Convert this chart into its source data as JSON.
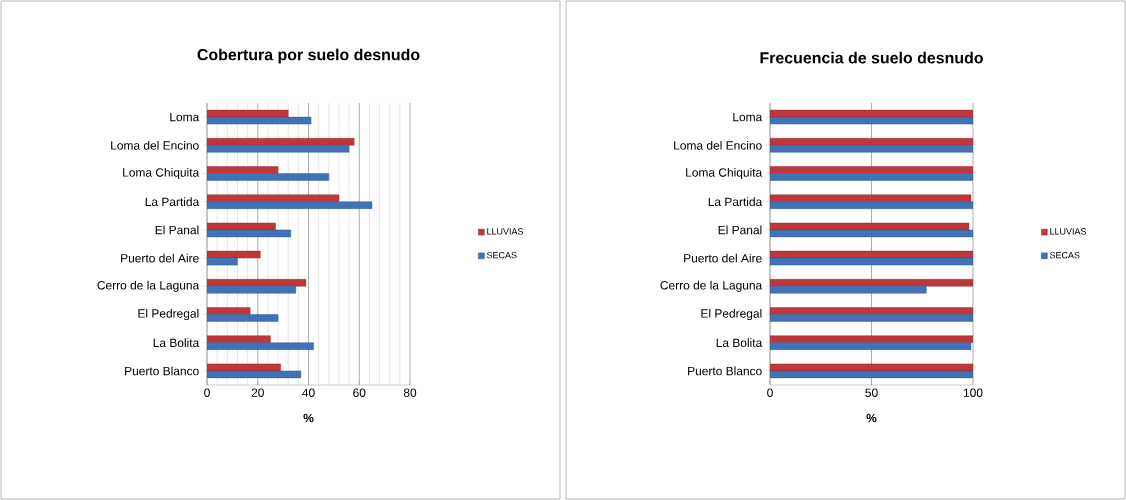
{
  "chart_data": [
    {
      "type": "bar",
      "orientation": "horizontal",
      "title": "Cobertura por suelo desnudo",
      "xlabel": "%",
      "categories": [
        "Loma",
        "Loma del Encino",
        "Loma Chiquita",
        "La Partida",
        "El Panal",
        "Puerto del Aire",
        "Cerro de la Laguna",
        "El Pedregal",
        "La Bolita",
        "Puerto Blanco"
      ],
      "series": [
        {
          "name": "LLUVIAS",
          "color": "#c0373a",
          "values": [
            32,
            58,
            28,
            52,
            27,
            21,
            39,
            17,
            25,
            29
          ]
        },
        {
          "name": "SECAS",
          "color": "#3f72b8",
          "values": [
            41,
            56,
            48,
            65,
            33,
            12,
            35,
            28,
            42,
            37
          ]
        }
      ],
      "xlim": [
        0,
        80
      ],
      "xticks": [
        0,
        20,
        40,
        60,
        80
      ],
      "grid": "x",
      "legend": "right"
    },
    {
      "type": "bar",
      "orientation": "horizontal",
      "title": "Frecuencia de suelo desnudo",
      "xlabel": "%",
      "categories": [
        "Loma",
        "Loma del Encino",
        "Loma Chiquita",
        "La Partida",
        "El Panal",
        "Puerto del Aire",
        "Cerro de la Laguna",
        "El Pedregal",
        "La Bolita",
        "Puerto Blanco"
      ],
      "series": [
        {
          "name": "LLUVIAS",
          "color": "#c0373a",
          "values": [
            100,
            100,
            100,
            99,
            98,
            100,
            100,
            100,
            100,
            100
          ]
        },
        {
          "name": "SECAS",
          "color": "#3f72b8",
          "values": [
            100,
            100,
            100,
            100,
            100,
            100,
            77,
            100,
            99,
            100
          ]
        }
      ],
      "xlim": [
        0,
        100
      ],
      "xticks": [
        0,
        50,
        100
      ],
      "grid": "x",
      "legend": "right"
    }
  ]
}
